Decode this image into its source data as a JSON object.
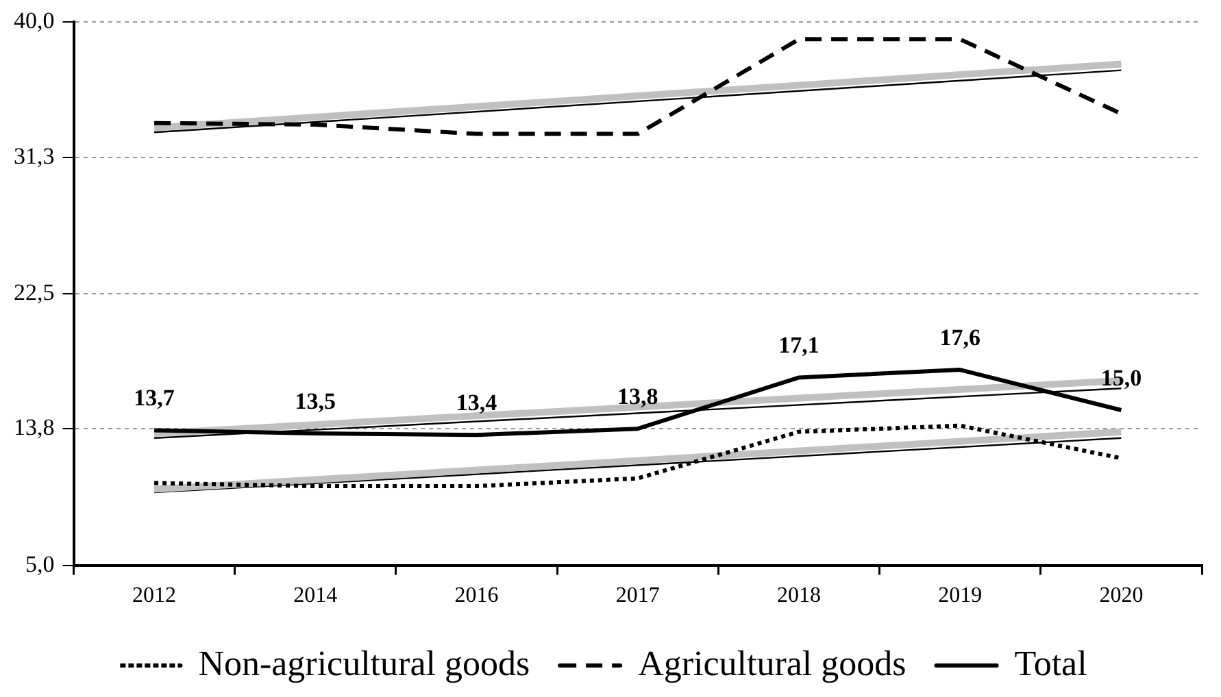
{
  "chart_data": {
    "type": "line",
    "categories": [
      "2012",
      "2014",
      "2016",
      "2017",
      "2018",
      "2019",
      "2020"
    ],
    "series": [
      {
        "name": "Non-agricultural goods",
        "color": "#000000",
        "line_style": "dotted",
        "values": [
          10.3,
          10.1,
          10.1,
          10.6,
          13.6,
          14.0,
          11.9
        ]
      },
      {
        "name": "Agricultural goods",
        "color": "#000000",
        "line_style": "dashed",
        "values": [
          33.5,
          33.4,
          32.8,
          32.8,
          38.9,
          38.9,
          34.1
        ]
      },
      {
        "name": "Total",
        "color": "#000000",
        "line_style": "solid",
        "values": [
          13.7,
          13.5,
          13.4,
          13.8,
          17.1,
          17.6,
          15.0
        ],
        "value_labels": [
          "13,7",
          "13,5",
          "13,4",
          "13,8",
          "17,1",
          "17,6",
          "15,0"
        ]
      },
      {
        "type": "line",
        "color": "#c0c0c0",
        "values": [
          9.9,
          null,
          null,
          null,
          null,
          null,
          13.6
        ]
      },
      {
        "type": "line",
        "color": "#000000",
        "values": [
          9.7,
          null,
          null,
          null,
          null,
          null,
          13.2
        ]
      },
      {
        "type": "line",
        "color": "#c0c0c0",
        "values": [
          13.5,
          null,
          null,
          null,
          null,
          null,
          16.9
        ]
      },
      {
        "type": "line",
        "color": "#000000",
        "values": [
          13.2,
          null,
          null,
          null,
          null,
          null,
          16.4
        ]
      },
      {
        "type": "line",
        "color": "#c0c0c0",
        "values": [
          33.2,
          null,
          null,
          null,
          null,
          null,
          37.3
        ]
      },
      {
        "type": "line",
        "color": "#000000",
        "values": [
          32.9,
          null,
          null,
          null,
          null,
          null,
          36.9
        ]
      }
    ],
    "ylim": [
      5,
      40
    ],
    "yticks": [
      {
        "value": 5,
        "label": "5,0"
      },
      {
        "value": 13.8,
        "label": "13,8"
      },
      {
        "value": 22.5,
        "label": "22,5"
      },
      {
        "value": 31.3,
        "label": "31,3"
      },
      {
        "value": 40,
        "label": "40,0"
      }
    ],
    "grid": "y",
    "legend": "bottom",
    "marker": "none"
  }
}
